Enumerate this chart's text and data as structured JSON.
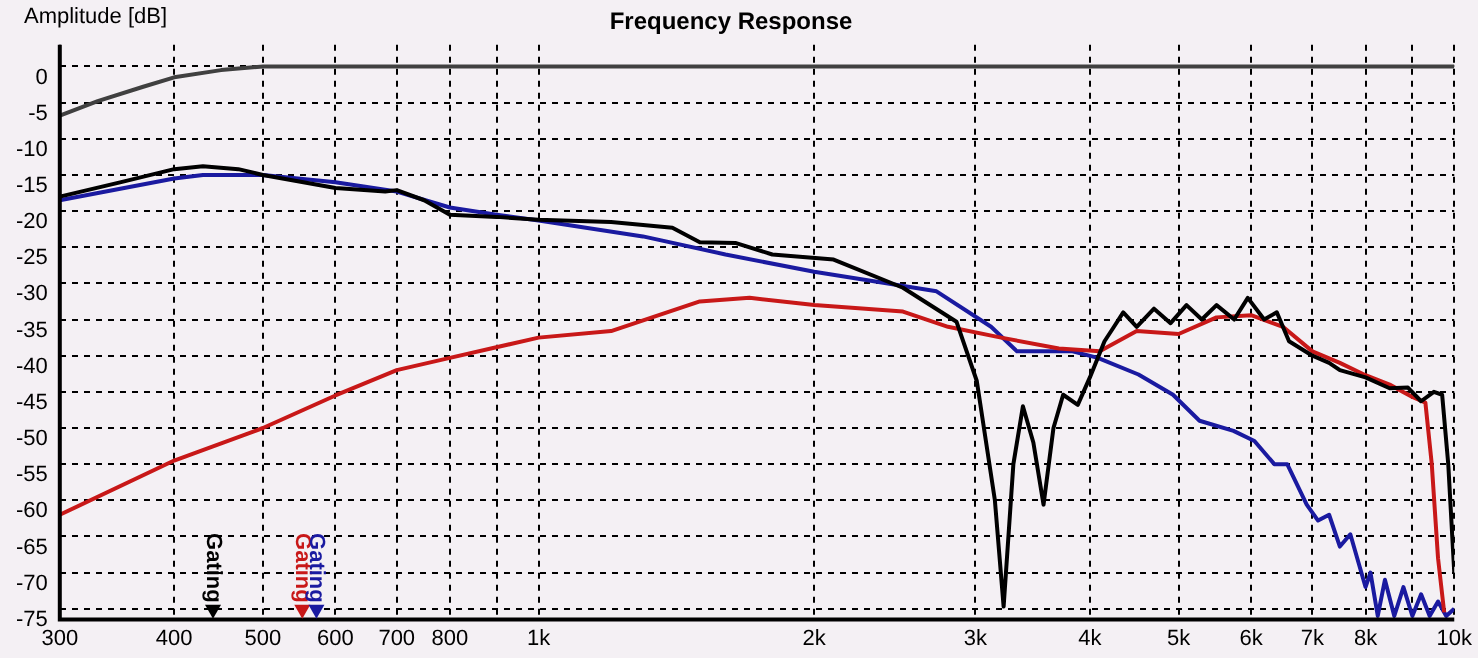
{
  "chart_data": {
    "type": "line",
    "title": "Frequency Response",
    "ylabel": "Amplitude [dB]",
    "xlim": [
      300,
      10000
    ],
    "ylim": [
      -76.5,
      3
    ],
    "xticks": [
      300,
      400,
      500,
      600,
      700,
      800,
      {
        "value": 900,
        "label": null
      },
      {
        "value": 1000,
        "label": "1k"
      },
      {
        "value": 2000,
        "label": "2k"
      },
      {
        "value": 3000,
        "label": "3k"
      },
      {
        "value": 4000,
        "label": "4k"
      },
      {
        "value": 5000,
        "label": "5k"
      },
      {
        "value": 6000,
        "label": "6k"
      },
      {
        "value": 7000,
        "label": "7k"
      },
      {
        "value": 8000,
        "label": "8k"
      },
      {
        "value": 9000,
        "label": null
      },
      {
        "value": 10000,
        "label": "10k"
      }
    ],
    "yticks": [
      0,
      -5,
      -10,
      -15,
      -20,
      -25,
      -30,
      -35,
      -40,
      -45,
      -50,
      -55,
      -60,
      -65,
      -70,
      -75
    ],
    "log": "x",
    "grid": true,
    "legend": false,
    "marker": "none",
    "line_style": "solid",
    "series": [
      {
        "color": "#404040",
        "x": [
          300,
          330,
          370,
          400,
          450,
          500,
          10000
        ],
        "values": [
          -6.8,
          -4.8,
          -2.8,
          -1.5,
          -0.5,
          0,
          0
        ]
      },
      {
        "color": "#000000",
        "x": [
          300,
          350,
          400,
          430,
          470,
          500,
          600,
          680,
          700,
          750,
          800,
          900,
          1000,
          1200,
          1400,
          1500,
          1640,
          1800,
          2100,
          2500,
          2860,
          3010,
          3150,
          3220,
          3300,
          3380,
          3470,
          3560,
          3650,
          3740,
          3880,
          4000,
          4150,
          4250,
          4350,
          4500,
          4700,
          4900,
          5100,
          5300,
          5500,
          5750,
          5950,
          6200,
          6400,
          6600,
          7000,
          7300,
          7500,
          8000,
          8500,
          8900,
          9200,
          9500,
          9700,
          9850,
          10000
        ],
        "values": [
          -18,
          -16,
          -14.2,
          -13.8,
          -14.2,
          -15,
          -16.8,
          -17.3,
          -17.1,
          -18.5,
          -20.5,
          -20.8,
          -21.2,
          -21.5,
          -22.3,
          -24.3,
          -24.4,
          -26,
          -26.7,
          -30.6,
          -35.3,
          -43.5,
          -60,
          -74.7,
          -55,
          -47,
          -52,
          -60.6,
          -50,
          -45.4,
          -46.8,
          -43,
          -38,
          -36,
          -34,
          -36,
          -33.5,
          -35.5,
          -33,
          -35,
          -33,
          -35,
          -32,
          -35,
          -34,
          -38,
          -40,
          -41,
          -42,
          -43,
          -44.5,
          -44.4,
          -46.3,
          -45,
          -45.4,
          -55,
          -70
        ]
      },
      {
        "color": "#c81818",
        "x": [
          300,
          400,
          500,
          600,
          700,
          800,
          1000,
          1200,
          1500,
          1700,
          2000,
          2500,
          2800,
          3200,
          3700,
          4100,
          4500,
          5000,
          5500,
          6000,
          6500,
          7000,
          7500,
          8000,
          8500,
          9000,
          9300,
          9450,
          9600,
          9750
        ],
        "values": [
          -62,
          -54.5,
          -50,
          -45.5,
          -42,
          -40.3,
          -37.5,
          -36.6,
          -32.5,
          -32,
          -33,
          -33.9,
          -36,
          -37.5,
          -39,
          -39.4,
          -36.6,
          -37,
          -34.7,
          -34.4,
          -36,
          -39.4,
          -41,
          -42.7,
          -44,
          -45.7,
          -46.5,
          -55,
          -68,
          -75.5
        ]
      },
      {
        "color": "#1a1aa0",
        "x": [
          300,
          400,
          430,
          500,
          600,
          700,
          800,
          900,
          1000,
          1300,
          1600,
          2000,
          2720,
          3120,
          3330,
          3830,
          4080,
          4520,
          4930,
          5270,
          5740,
          6050,
          6360,
          6570,
          6900,
          7100,
          7300,
          7500,
          7700,
          8000,
          8100,
          8250,
          8400,
          8600,
          8800,
          9000,
          9200,
          9400,
          9600,
          9800,
          10000
        ],
        "values": [
          -18.5,
          -15.5,
          -15,
          -15,
          -16,
          -17.3,
          -19.5,
          -20.5,
          -21.3,
          -23.5,
          -26,
          -28.4,
          -31.1,
          -36,
          -39.4,
          -39.4,
          -40.3,
          -42.6,
          -45.4,
          -49,
          -50.4,
          -51.8,
          -55,
          -55,
          -60.6,
          -62.8,
          -62,
          -66.4,
          -64.7,
          -72,
          -70,
          -76,
          -71,
          -76,
          -72,
          -76,
          -73,
          -76,
          -74,
          -76,
          -75
        ]
      }
    ],
    "annotations": [
      {
        "text": "Gating",
        "x": 441,
        "y": -75
      },
      {
        "text": "Gating",
        "x": 552,
        "y": -75
      },
      {
        "text": "Gating",
        "x": 572,
        "y": -75
      }
    ]
  }
}
